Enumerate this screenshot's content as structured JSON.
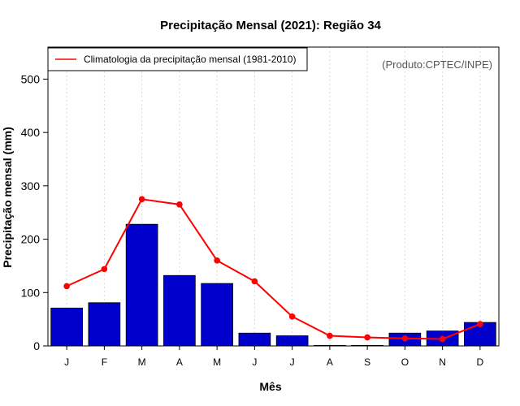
{
  "chart_data": {
    "type": "bar",
    "title": "Precipitação Mensal (2021): Região 34",
    "xlabel": "Mês",
    "ylabel": "Precipitação mensal (mm)",
    "categories": [
      "J",
      "F",
      "M",
      "A",
      "M",
      "J",
      "J",
      "A",
      "S",
      "O",
      "N",
      "D"
    ],
    "ylim": [
      0,
      560
    ],
    "yticks": [
      0,
      100,
      200,
      300,
      400,
      500
    ],
    "grid": "vertical dotted",
    "series": [
      {
        "name": "Precipitação mensal 2021",
        "kind": "bar",
        "color": "#0000CC",
        "values": [
          71,
          81,
          228,
          132,
          117,
          24,
          19,
          1,
          1,
          24,
          28,
          44
        ]
      },
      {
        "name": "Climatologia da precipitação mensal (1981-2010)",
        "kind": "line",
        "color": "#FF0000",
        "values": [
          112,
          144,
          275,
          265,
          160,
          121,
          55,
          19,
          16,
          14,
          13,
          41
        ]
      }
    ],
    "legend": {
      "position": "top-left",
      "entries": [
        "Climatologia da precipitação mensal (1981-2010)"
      ]
    },
    "annotation": "(Produto:CPTEC/INPE)"
  }
}
